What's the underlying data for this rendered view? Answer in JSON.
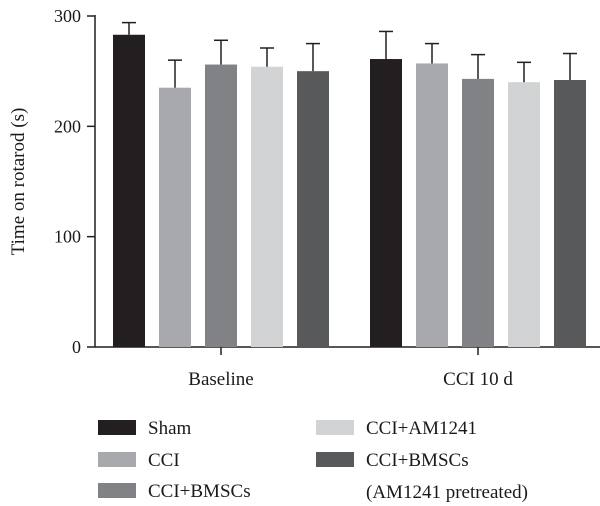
{
  "chart_data": {
    "type": "bar",
    "title": "",
    "xlabel": "",
    "ylabel": "Time on rotarod (s)",
    "ylim": [
      0,
      300
    ],
    "yticks": [
      0,
      100,
      200,
      300
    ],
    "grid": false,
    "legend_position": "bottom",
    "categories": [
      "Baseline",
      "CCI 10 d"
    ],
    "series": [
      {
        "name": "Sham",
        "color": "#231f20",
        "values": [
          283,
          261
        ],
        "errors": [
          11,
          25
        ]
      },
      {
        "name": "CCI",
        "color": "#a7a9ac",
        "values": [
          235,
          257
        ],
        "errors": [
          25,
          18
        ]
      },
      {
        "name": "CCI+BMSCs",
        "color": "#808285",
        "values": [
          256,
          243
        ],
        "errors": [
          22,
          22
        ]
      },
      {
        "name": "CCI+AM1241",
        "color": "#d1d3d4",
        "values": [
          254,
          240
        ],
        "errors": [
          17,
          18
        ]
      },
      {
        "name": "CCI+BMSCs",
        "name_line2": "(AM1241 pretreated)",
        "color": "#58595b",
        "values": [
          250,
          242
        ],
        "errors": [
          25,
          24
        ]
      }
    ]
  }
}
